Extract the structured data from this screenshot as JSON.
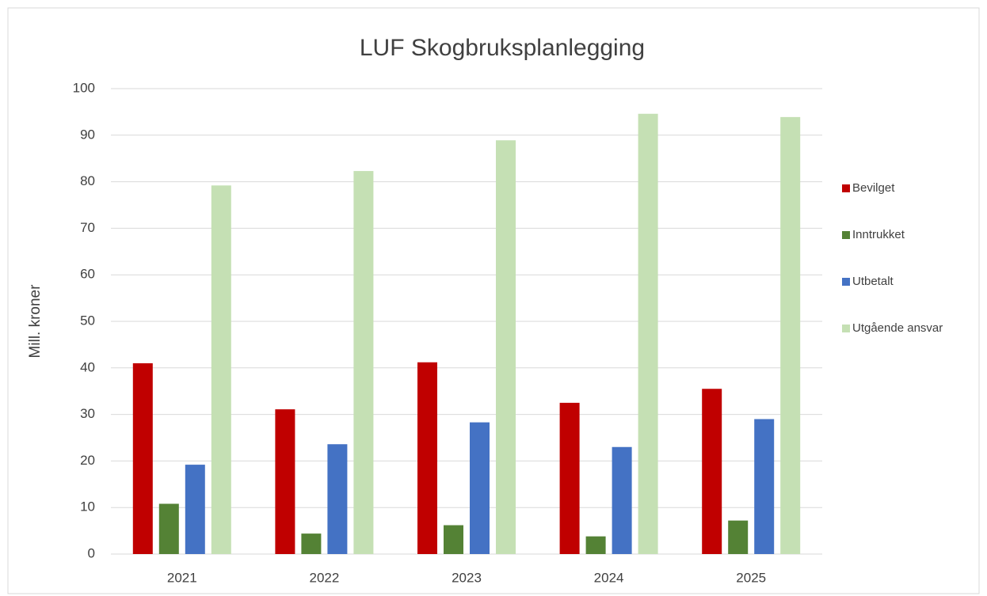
{
  "chart_data": {
    "type": "bar",
    "title": "LUF Skogbruksplanlegging",
    "y_label": "Mill. kroner",
    "categories": [
      "2021",
      "2022",
      "2023",
      "2024",
      "2025"
    ],
    "series": [
      {
        "name": "Bevilget",
        "color": "#c00000",
        "values": [
          41.0,
          31.1,
          41.2,
          32.5,
          35.5
        ]
      },
      {
        "name": "Inntrukket",
        "color": "#548235",
        "values": [
          10.8,
          4.4,
          6.2,
          3.8,
          7.2
        ]
      },
      {
        "name": "Utbetalt",
        "color": "#4472c4",
        "values": [
          19.2,
          23.6,
          28.3,
          23.0,
          29.0
        ]
      },
      {
        "name": "Utgående ansvar",
        "color": "#c5e0b4",
        "values": [
          79.2,
          82.3,
          88.9,
          94.6,
          93.9
        ]
      }
    ],
    "ylim": [
      0,
      100
    ],
    "yticks": [
      0,
      10,
      20,
      30,
      40,
      50,
      60,
      70,
      80,
      90,
      100
    ],
    "grid": true,
    "legend": "right"
  }
}
